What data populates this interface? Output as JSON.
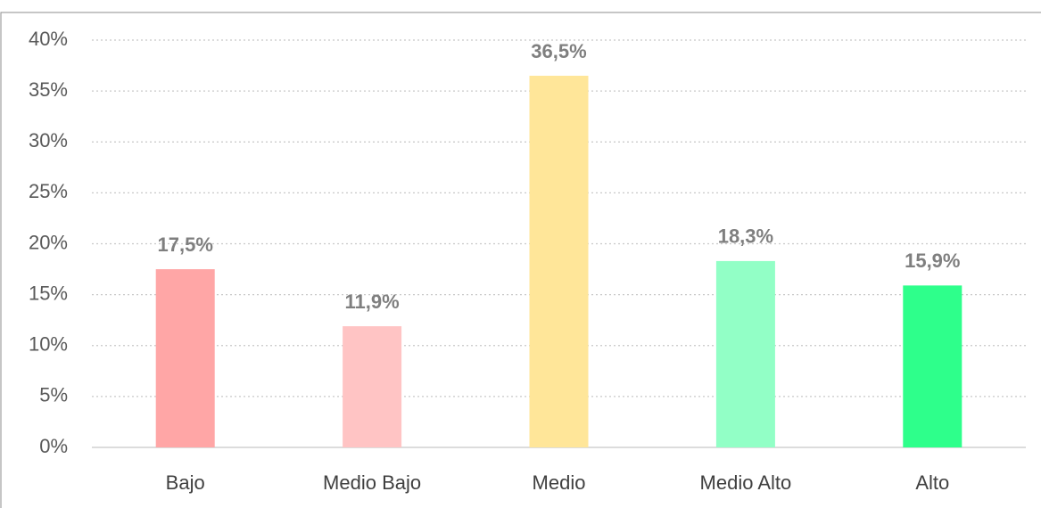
{
  "chart_data": {
    "type": "bar",
    "categories": [
      "Bajo",
      "Medio Bajo",
      "Medio",
      "Medio Alto",
      "Alto"
    ],
    "values": [
      17.5,
      11.9,
      36.5,
      18.3,
      15.9
    ],
    "value_labels": [
      "17,5%",
      "11,9%",
      "36,5%",
      "18,3%",
      "15,9%"
    ],
    "colors": [
      "#ffa6a6",
      "#ffc4c4",
      "#ffe699",
      "#92ffc6",
      "#2eff8b"
    ],
    "ylim": [
      0,
      40
    ],
    "yticks": [
      {
        "value": 0,
        "label": "0%"
      },
      {
        "value": 5,
        "label": "5%"
      },
      {
        "value": 10,
        "label": "10%"
      },
      {
        "value": 15,
        "label": "15%"
      },
      {
        "value": 20,
        "label": "20%"
      },
      {
        "value": 25,
        "label": "25%"
      },
      {
        "value": 30,
        "label": "30%"
      },
      {
        "value": 35,
        "label": "35%"
      },
      {
        "value": 40,
        "label": "40%"
      }
    ],
    "grid": true
  }
}
